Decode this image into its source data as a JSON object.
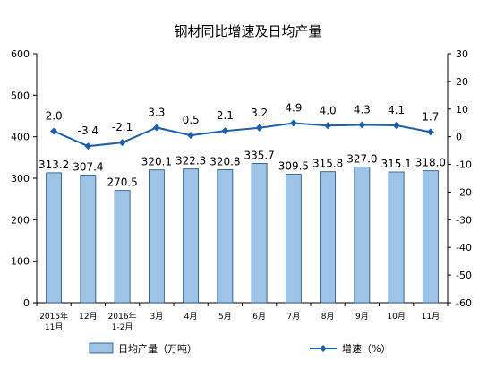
{
  "chart_data": {
    "type": "bar+line",
    "title": "钢材同比增速及日均产量",
    "categories": [
      "2015年\n11月",
      "12月",
      "2016年\n1-2月",
      "3月",
      "4月",
      "5月",
      "6月",
      "7月",
      "8月",
      "9月",
      "10月",
      "11月"
    ],
    "series": [
      {
        "name": "日均产量（万吨）",
        "type": "bar",
        "axis": "left",
        "values": [
          313.2,
          307.4,
          270.5,
          320.1,
          322.3,
          320.8,
          335.7,
          309.5,
          315.8,
          327.0,
          315.1,
          318.0
        ],
        "labels": [
          "313.2",
          "307.4",
          "270.5",
          "320.1",
          "322.3",
          "320.8",
          "335.7",
          "309.5",
          "315.8",
          "327.0",
          "315.1",
          "318.0"
        ],
        "color": "#9dc3e6"
      },
      {
        "name": "增速（%）",
        "type": "line",
        "axis": "right",
        "values": [
          2.0,
          -3.4,
          -2.1,
          3.3,
          0.5,
          2.1,
          3.2,
          4.9,
          4.0,
          4.3,
          4.1,
          1.7
        ],
        "labels": [
          "2.0",
          "-3.4",
          "-2.1",
          "3.3",
          "0.5",
          "2.1",
          "3.2",
          "4.9",
          "4.0",
          "4.3",
          "4.1",
          "1.7"
        ],
        "color": "#1f5fa8"
      }
    ],
    "left_axis": {
      "min": 0,
      "max": 600,
      "ticks": [
        "0",
        "100",
        "200",
        "300",
        "400",
        "500",
        "600"
      ]
    },
    "right_axis": {
      "min": -60,
      "max": 30,
      "ticks": [
        "-60",
        "-50",
        "-40",
        "-30",
        "-20",
        "-10",
        "0",
        "10",
        "20",
        "30"
      ]
    },
    "legend": {
      "position": "bottom"
    },
    "grid": false
  }
}
